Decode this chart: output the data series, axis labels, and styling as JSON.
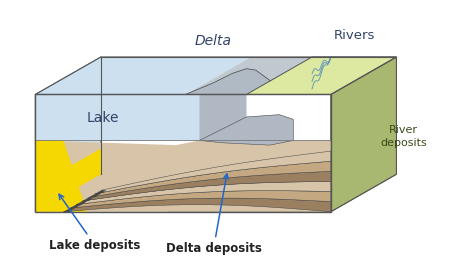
{
  "labels": {
    "lake": "Lake",
    "delta": "Delta",
    "rivers": "Rivers",
    "river_deposits": "River\ndeposits",
    "lake_deposits": "Lake deposits",
    "delta_deposits": "Delta deposits"
  },
  "colors": {
    "lake_water": "#cce0f0",
    "lake_deposit": "#f5d800",
    "delta_gray": "#b0b8c4",
    "river_land_top": "#dde8a0",
    "river_land_side": "#a8b870",
    "deposit_light": "#d8c4a8",
    "deposit_mid": "#c4a882",
    "deposit_dark": "#9a8060",
    "water_blue": "#5590b8",
    "outline": "#444444",
    "white": "#ffffff",
    "box_outline": "#555555",
    "bottom_face": "#c8b090"
  },
  "figsize": [
    4.74,
    2.64
  ],
  "dpi": 100
}
